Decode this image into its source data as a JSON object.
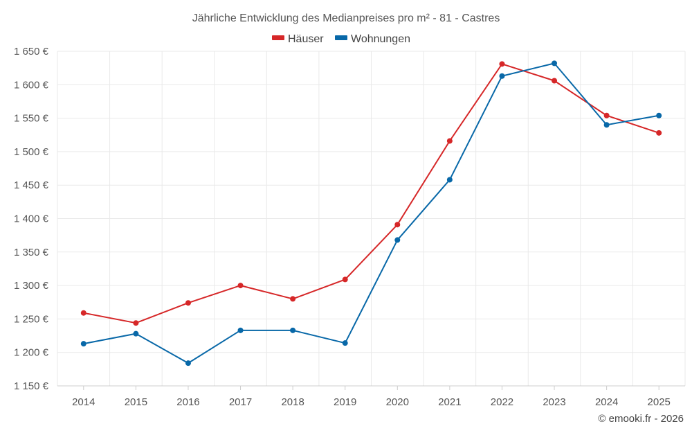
{
  "chart_data": {
    "type": "line",
    "title": "Jährliche Entwicklung des Medianpreises pro m² - 81 - Castres",
    "categories": [
      "2014",
      "2015",
      "2016",
      "2017",
      "2018",
      "2019",
      "2020",
      "2021",
      "2022",
      "2023",
      "2024",
      "2025"
    ],
    "series": [
      {
        "name": "Häuser",
        "color": "#d62728",
        "values": [
          1259,
          1244,
          1274,
          1300,
          1280,
          1309,
          1391,
          1516,
          1631,
          1606,
          1554,
          1528
        ]
      },
      {
        "name": "Wohnungen",
        "color": "#0868a8",
        "values": [
          1213,
          1228,
          1184,
          1233,
          1233,
          1214,
          1368,
          1458,
          1613,
          1632,
          1540,
          1554
        ]
      }
    ],
    "ylim": [
      1150,
      1650
    ],
    "yticks": [
      1150,
      1200,
      1250,
      1300,
      1350,
      1400,
      1450,
      1500,
      1550,
      1600,
      1650
    ],
    "ytick_labels": [
      "1 150 €",
      "1 200 €",
      "1 250 €",
      "1 300 €",
      "1 350 €",
      "1 400 €",
      "1 450 €",
      "1 500 €",
      "1 550 €",
      "1 600 €",
      "1 650 €"
    ],
    "grid": true,
    "legend_position": "top-center"
  },
  "credit": "© emooki.fr - 2026"
}
